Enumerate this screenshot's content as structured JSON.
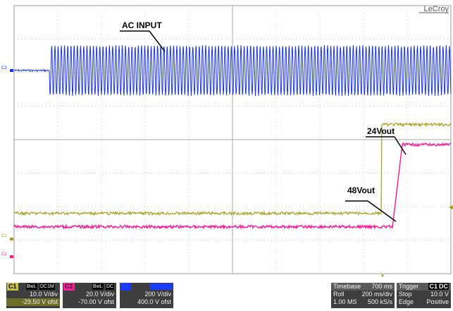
{
  "brand": "LeCroy",
  "annotations": {
    "ac": "AC INPUT",
    "v24": "24Vout",
    "v48": "48Vout"
  },
  "markers": {
    "c3": "C3",
    "c1": "C1",
    "c2": "C2"
  },
  "channels": [
    {
      "name": "C1",
      "tags": [
        "BwL",
        "DC1M"
      ],
      "vdiv": "10.0 V/div",
      "offset": "-29.50 V ofst",
      "color": "#c8c24b"
    },
    {
      "name": "C2",
      "tags": [
        "BwL",
        "DC"
      ],
      "vdiv": "20.0 V/div",
      "offset": "-70.00 V ofst",
      "color": "#ff1fa0"
    },
    {
      "name": "",
      "tags": [
        "",
        ""
      ],
      "vdiv": "200 V/div",
      "offset": "400.0 V ofst",
      "color": "#1a3cff"
    }
  ],
  "timebase": {
    "label": "Timebase",
    "value": "700 ms",
    "mode": "Roll",
    "div": "200 ms/div",
    "samples": "1.00 MS",
    "rate": "500 kS/s"
  },
  "trigger": {
    "label": "Trigger",
    "chip": "C1",
    "coupling": "DC",
    "mode": "Stop",
    "level": "10.0 V",
    "type": "Edge",
    "slope": "Positive"
  },
  "colors": {
    "ac": "#1733e6",
    "v24": "#a5a01a",
    "v48": "#ff1493",
    "grid": "#c8c8c8"
  },
  "waveform": {
    "ac_amplitude_divs": 1.35,
    "v24_low_divs": -2.2,
    "v24_high_divs": 0.45,
    "v48_low_divs": -2.6,
    "v48_high_divs": -0.15
  }
}
